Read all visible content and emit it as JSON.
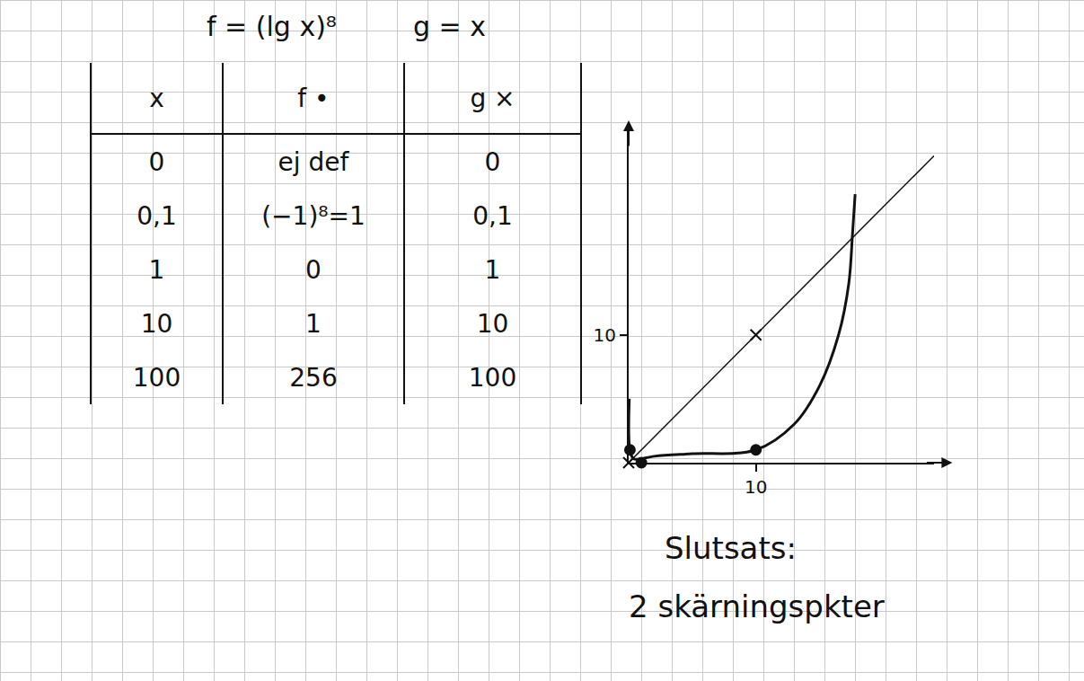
{
  "header": [
    "f = (lg x)⁸",
    "g = x"
  ],
  "table": {
    "columns": [
      "x",
      "f •",
      "g ×"
    ],
    "rows": [
      [
        "0",
        "ej def",
        "0"
      ],
      [
        "0,1",
        "(−1)⁸=1",
        "0,1"
      ],
      [
        "1",
        "0",
        "1"
      ],
      [
        "10",
        "1",
        "10"
      ],
      [
        "100",
        "256",
        "100"
      ]
    ]
  },
  "chart_data": {
    "type": "line",
    "xlim": [
      0,
      24
    ],
    "ylim": [
      0,
      26
    ],
    "xticks": [
      10
    ],
    "yticks": [
      10
    ],
    "grid": false,
    "series": [
      {
        "name": "f",
        "color": "#111111",
        "line_style": "solid",
        "x": [
          0.05,
          0.1,
          0.4,
          2,
          5,
          10,
          13,
          15,
          16.5,
          17.3,
          17.6,
          17.8
        ],
        "values": [
          5,
          1,
          0.3,
          0.5,
          0.7,
          1,
          3,
          6,
          10,
          14,
          18,
          21
        ]
      },
      {
        "name": "g",
        "color": "#111111",
        "line_style": "solid",
        "x": [
          0,
          24
        ],
        "values": [
          0,
          24
        ]
      },
      {
        "name": "f",
        "type": "scatter",
        "marker": "circle",
        "color": "#111111",
        "x": [
          0.1,
          1,
          10
        ],
        "values": [
          1,
          0,
          1
        ]
      },
      {
        "name": "g",
        "type": "scatter",
        "marker": "x",
        "color": "#111111",
        "x": [
          0,
          10
        ],
        "values": [
          0,
          10
        ]
      }
    ]
  },
  "conclusion": [
    "Slutsats:",
    "2 skärningspkter"
  ]
}
